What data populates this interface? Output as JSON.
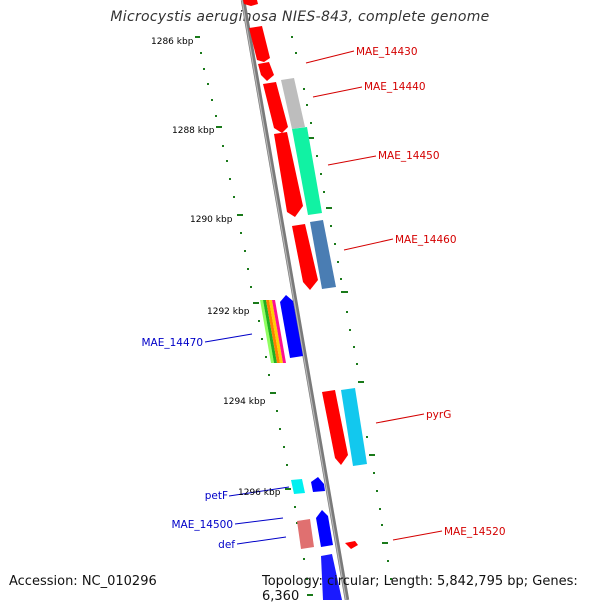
{
  "title": "Microcystis aeruginosa NIES-843, complete genome",
  "accession": "Accession: NC_010296",
  "topology": "Topology: circular; Length: 5,842,795 bp; Genes: 6,360",
  "colors": {
    "backbone": "#8a8a8a",
    "tick": "#1a7a1a",
    "forward_label": "#d40000",
    "reverse_label": "#0000c8"
  },
  "scale_labels": [
    "1286 kbp",
    "1288 kbp",
    "1290 kbp",
    "1292 kbp",
    "1294 kbp",
    "1296 kbp"
  ],
  "gene_labels": [
    {
      "text": "MAE_14430",
      "strand": "forward"
    },
    {
      "text": "MAE_14440",
      "strand": "forward"
    },
    {
      "text": "MAE_14450",
      "strand": "forward"
    },
    {
      "text": "MAE_14460",
      "strand": "forward"
    },
    {
      "text": "MAE_14470",
      "strand": "reverse"
    },
    {
      "text": "pyrG",
      "strand": "forward"
    },
    {
      "text": "petF",
      "strand": "reverse"
    },
    {
      "text": "MAE_14500",
      "strand": "reverse"
    },
    {
      "text": "def",
      "strand": "reverse"
    },
    {
      "text": "MAE_14520",
      "strand": "forward"
    }
  ]
}
